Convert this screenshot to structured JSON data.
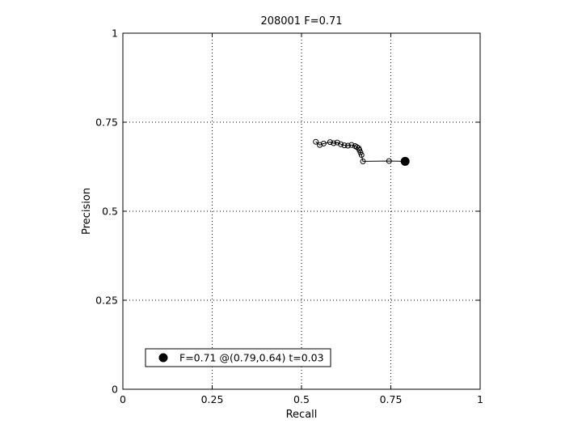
{
  "chart_data": {
    "type": "line",
    "title": "208001 F=0.71",
    "xlabel": "Recall",
    "ylabel": "Precision",
    "xlim": [
      0,
      1
    ],
    "ylim": [
      0,
      1
    ],
    "grid": true,
    "legend_placement": "bottom-left",
    "x_ticks": [
      {
        "value": 0,
        "label": "0"
      },
      {
        "value": 0.25,
        "label": "0.25"
      },
      {
        "value": 0.5,
        "label": "0.5"
      },
      {
        "value": 0.75,
        "label": "0.75"
      },
      {
        "value": 1,
        "label": "1"
      }
    ],
    "y_ticks": [
      {
        "value": 0,
        "label": "0"
      },
      {
        "value": 0.25,
        "label": "0.25"
      },
      {
        "value": 0.5,
        "label": "0.5"
      },
      {
        "value": 0.75,
        "label": "0.75"
      },
      {
        "value": 1,
        "label": "1"
      }
    ],
    "series": [
      {
        "marker": "open-circle",
        "color": "#000000",
        "points": [
          [
            0.54,
            0.695
          ],
          [
            0.551,
            0.686
          ],
          [
            0.562,
            0.69
          ],
          [
            0.58,
            0.694
          ],
          [
            0.59,
            0.691
          ],
          [
            0.6,
            0.693
          ],
          [
            0.61,
            0.688
          ],
          [
            0.62,
            0.685
          ],
          [
            0.63,
            0.684
          ],
          [
            0.64,
            0.686
          ],
          [
            0.65,
            0.683
          ],
          [
            0.655,
            0.68
          ],
          [
            0.66,
            0.677
          ],
          [
            0.662,
            0.672
          ],
          [
            0.665,
            0.665
          ],
          [
            0.668,
            0.658
          ],
          [
            0.672,
            0.64
          ],
          [
            0.745,
            0.641
          ],
          [
            0.79,
            0.64
          ]
        ]
      }
    ],
    "highlight": {
      "marker": "filled-circle",
      "color": "#000000",
      "x": 0.79,
      "y": 0.64
    },
    "legend": [
      {
        "label": "F=0.71 @(0.79,0.64) t=0.03",
        "marker": "filled-circle"
      }
    ]
  }
}
